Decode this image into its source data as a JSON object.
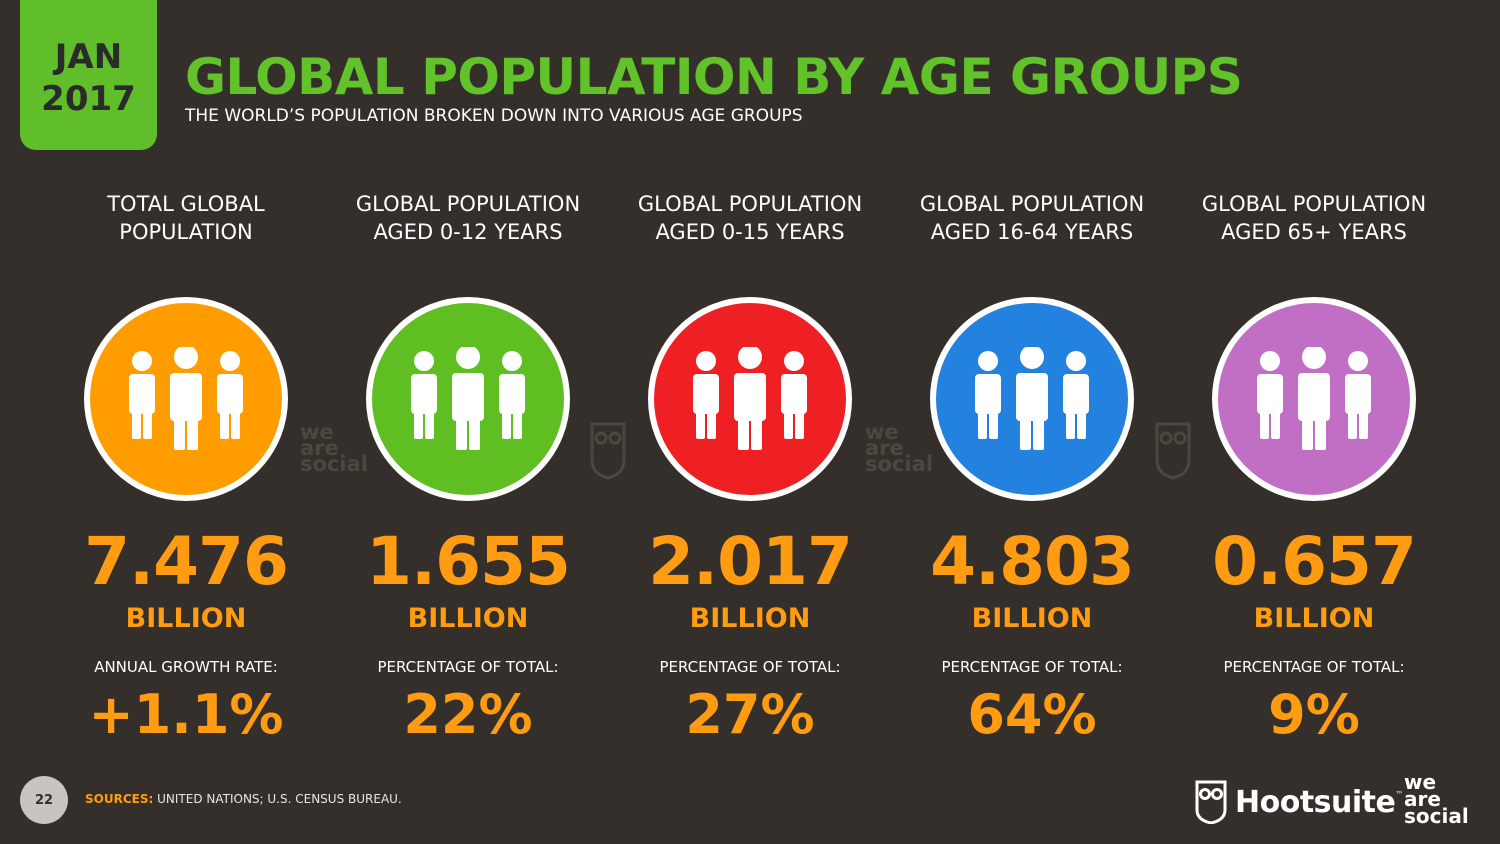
{
  "header": {
    "month": "JAN",
    "year": "2017",
    "title": "GLOBAL POPULATION BY AGE GROUPS",
    "subtitle": "THE WORLD’S POPULATION BROKEN DOWN INTO VARIOUS AGE GROUPS"
  },
  "columns": [
    {
      "label_line1": "TOTAL GLOBAL",
      "label_line2": "POPULATION",
      "color": "#ff9c00",
      "value": "7.476",
      "unit": "BILLION",
      "metric_label": "ANNUAL GROWTH RATE:",
      "metric_value": "+1.1%"
    },
    {
      "label_line1": "GLOBAL POPULATION",
      "label_line2": "AGED 0-12 YEARS",
      "color": "#5fbe22",
      "value": "1.655",
      "unit": "BILLION",
      "metric_label": "PERCENTAGE OF TOTAL:",
      "metric_value": "22%"
    },
    {
      "label_line1": "GLOBAL POPULATION",
      "label_line2": "AGED 0-15 YEARS",
      "color": "#ef2024",
      "value": "2.017",
      "unit": "BILLION",
      "metric_label": "PERCENTAGE OF TOTAL:",
      "metric_value": "27%"
    },
    {
      "label_line1": "GLOBAL POPULATION",
      "label_line2": "AGED 16-64 YEARS",
      "color": "#2381df",
      "value": "4.803",
      "unit": "BILLION",
      "metric_label": "PERCENTAGE OF TOTAL:",
      "metric_value": "64%"
    },
    {
      "label_line1": "GLOBAL POPULATION",
      "label_line2": "AGED 65+ YEARS",
      "color": "#c06fc5",
      "value": "0.657",
      "unit": "BILLION",
      "metric_label": "PERCENTAGE OF TOTAL:",
      "metric_value": "9%"
    }
  ],
  "icons": {
    "people": "people-group-icon",
    "owl": "owl-icon"
  },
  "watermark": {
    "line1": "we",
    "line2": "are",
    "line3": "social"
  },
  "footer": {
    "page_number": "22",
    "sources_label": "SOURCES:",
    "sources_text": "UNITED NATIONS; U.S. CENSUS BUREAU.",
    "hootsuite": "Hootsuite",
    "hootsuite_tm": "™",
    "was_line1": "we",
    "was_line2": "are",
    "was_line3": "social"
  }
}
